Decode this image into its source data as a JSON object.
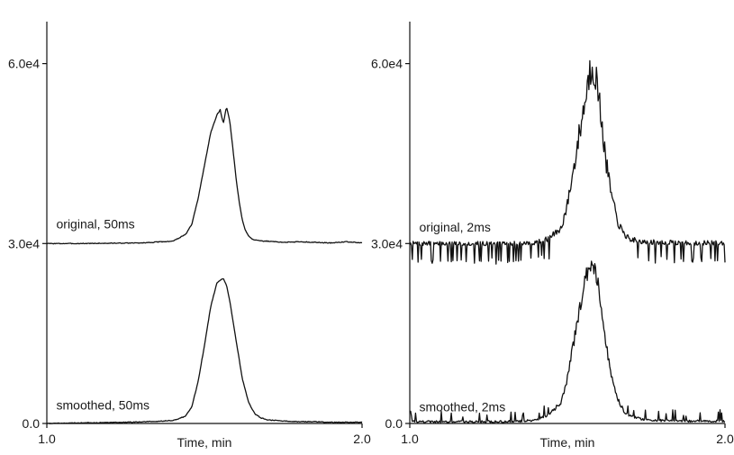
{
  "chart_data": [
    {
      "type": "line",
      "xlabel": "Time, min",
      "xlim": [
        1.0,
        2.0
      ],
      "ylim": [
        0,
        67000
      ],
      "x_ticks": [
        "1.0",
        "2.0"
      ],
      "y_ticks": [
        {
          "value": 0,
          "label": "0.0"
        },
        {
          "value": 30000,
          "label": "3.0e4"
        },
        {
          "value": 60000,
          "label": "6.0e4"
        }
      ],
      "series": [
        {
          "name": "original, 50ms",
          "label_x": 1.03,
          "label_y": 32500,
          "x": [
            1.0,
            1.1,
            1.2,
            1.3,
            1.4,
            1.44,
            1.46,
            1.48,
            1.5,
            1.52,
            1.54,
            1.55,
            1.56,
            1.57,
            1.58,
            1.59,
            1.6,
            1.61,
            1.62,
            1.63,
            1.64,
            1.65,
            1.66,
            1.68,
            1.7,
            1.75,
            1.8,
            1.85,
            1.9,
            1.95,
            2.0
          ],
          "values": [
            30000,
            30000,
            30050,
            30100,
            30400,
            31500,
            33200,
            37500,
            43000,
            48500,
            51500,
            52300,
            50000,
            52800,
            50500,
            46000,
            41000,
            37000,
            34000,
            32200,
            31300,
            30800,
            30600,
            30400,
            30400,
            30200,
            30300,
            30200,
            30100,
            30300,
            30100
          ]
        },
        {
          "name": "smoothed, 50ms",
          "label_x": 1.03,
          "label_y": 2300,
          "x": [
            1.0,
            1.1,
            1.2,
            1.3,
            1.4,
            1.44,
            1.46,
            1.48,
            1.5,
            1.52,
            1.54,
            1.56,
            1.57,
            1.58,
            1.6,
            1.62,
            1.64,
            1.66,
            1.68,
            1.7,
            1.75,
            1.8,
            1.85,
            1.9,
            1.95,
            2.0
          ],
          "values": [
            0,
            100,
            150,
            250,
            500,
            1200,
            2800,
            7000,
            13000,
            19500,
            23500,
            24200,
            23000,
            20500,
            14000,
            7500,
            3500,
            1600,
            900,
            600,
            400,
            300,
            300,
            200,
            200,
            200
          ]
        }
      ]
    },
    {
      "type": "line",
      "xlabel": "Time, min",
      "xlim": [
        1.0,
        2.0
      ],
      "ylim": [
        0,
        67000
      ],
      "x_ticks": [
        "1.0",
        "2.0"
      ],
      "y_ticks": [
        {
          "value": 0,
          "label": "0.0"
        },
        {
          "value": 30000,
          "label": "3.0e4"
        },
        {
          "value": 60000,
          "label": "6.0e4"
        }
      ],
      "series": [
        {
          "name": "original, 2ms",
          "label_x": 1.03,
          "label_y": 32000,
          "x": [
            1.0,
            1.1,
            1.2,
            1.3,
            1.36,
            1.4,
            1.44,
            1.48,
            1.5,
            1.52,
            1.54,
            1.56,
            1.57,
            1.58,
            1.59,
            1.6,
            1.61,
            1.62,
            1.64,
            1.66,
            1.68,
            1.7,
            1.74,
            1.8,
            1.9,
            2.0
          ],
          "values": [
            30000,
            30000,
            30000,
            30000,
            30000,
            30200,
            30800,
            32500,
            36500,
            42500,
            49000,
            55000,
            58500,
            60000,
            58000,
            54000,
            50000,
            44500,
            38000,
            33500,
            31500,
            30700,
            30300,
            30200,
            30100,
            30100
          ],
          "noise_amp": 5000,
          "spike_baseline": true,
          "seed": 7
        },
        {
          "name": "smoothed, 2ms",
          "label_x": 1.03,
          "label_y": 2000,
          "x": [
            1.0,
            1.1,
            1.2,
            1.3,
            1.36,
            1.4,
            1.44,
            1.48,
            1.5,
            1.52,
            1.54,
            1.56,
            1.57,
            1.58,
            1.59,
            1.6,
            1.61,
            1.62,
            1.64,
            1.66,
            1.68,
            1.7,
            1.74,
            1.8,
            1.9,
            2.0
          ],
          "values": [
            300,
            300,
            300,
            300,
            400,
            600,
            1400,
            3500,
            7500,
            13500,
            19500,
            24500,
            26500,
            27000,
            25500,
            22500,
            18500,
            14000,
            8000,
            4000,
            2000,
            1200,
            700,
            500,
            400,
            400
          ],
          "noise_amp": 2400,
          "spike_baseline": false,
          "seed": 19
        }
      ]
    }
  ]
}
